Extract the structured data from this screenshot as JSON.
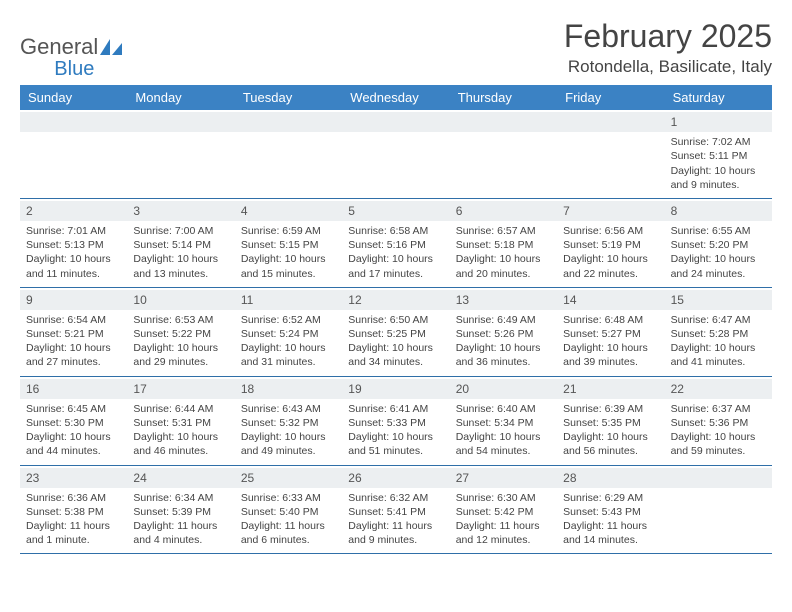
{
  "brand": {
    "part1": "General",
    "part2": "Blue"
  },
  "title": {
    "month": "February 2025",
    "location": "Rotondella, Basilicate, Italy"
  },
  "colors": {
    "headerBar": "#3b82c4",
    "rowDivider": "#2f6fa8",
    "daynumBg": "#eceff1",
    "brandBlue": "#2f7bbf"
  },
  "dayHeaders": [
    "Sunday",
    "Monday",
    "Tuesday",
    "Wednesday",
    "Thursday",
    "Friday",
    "Saturday"
  ],
  "weeks": [
    [
      null,
      null,
      null,
      null,
      null,
      null,
      {
        "n": "1",
        "sr": "Sunrise: 7:02 AM",
        "ss": "Sunset: 5:11 PM",
        "d1": "Daylight: 10 hours",
        "d2": "and 9 minutes."
      }
    ],
    [
      {
        "n": "2",
        "sr": "Sunrise: 7:01 AM",
        "ss": "Sunset: 5:13 PM",
        "d1": "Daylight: 10 hours",
        "d2": "and 11 minutes."
      },
      {
        "n": "3",
        "sr": "Sunrise: 7:00 AM",
        "ss": "Sunset: 5:14 PM",
        "d1": "Daylight: 10 hours",
        "d2": "and 13 minutes."
      },
      {
        "n": "4",
        "sr": "Sunrise: 6:59 AM",
        "ss": "Sunset: 5:15 PM",
        "d1": "Daylight: 10 hours",
        "d2": "and 15 minutes."
      },
      {
        "n": "5",
        "sr": "Sunrise: 6:58 AM",
        "ss": "Sunset: 5:16 PM",
        "d1": "Daylight: 10 hours",
        "d2": "and 17 minutes."
      },
      {
        "n": "6",
        "sr": "Sunrise: 6:57 AM",
        "ss": "Sunset: 5:18 PM",
        "d1": "Daylight: 10 hours",
        "d2": "and 20 minutes."
      },
      {
        "n": "7",
        "sr": "Sunrise: 6:56 AM",
        "ss": "Sunset: 5:19 PM",
        "d1": "Daylight: 10 hours",
        "d2": "and 22 minutes."
      },
      {
        "n": "8",
        "sr": "Sunrise: 6:55 AM",
        "ss": "Sunset: 5:20 PM",
        "d1": "Daylight: 10 hours",
        "d2": "and 24 minutes."
      }
    ],
    [
      {
        "n": "9",
        "sr": "Sunrise: 6:54 AM",
        "ss": "Sunset: 5:21 PM",
        "d1": "Daylight: 10 hours",
        "d2": "and 27 minutes."
      },
      {
        "n": "10",
        "sr": "Sunrise: 6:53 AM",
        "ss": "Sunset: 5:22 PM",
        "d1": "Daylight: 10 hours",
        "d2": "and 29 minutes."
      },
      {
        "n": "11",
        "sr": "Sunrise: 6:52 AM",
        "ss": "Sunset: 5:24 PM",
        "d1": "Daylight: 10 hours",
        "d2": "and 31 minutes."
      },
      {
        "n": "12",
        "sr": "Sunrise: 6:50 AM",
        "ss": "Sunset: 5:25 PM",
        "d1": "Daylight: 10 hours",
        "d2": "and 34 minutes."
      },
      {
        "n": "13",
        "sr": "Sunrise: 6:49 AM",
        "ss": "Sunset: 5:26 PM",
        "d1": "Daylight: 10 hours",
        "d2": "and 36 minutes."
      },
      {
        "n": "14",
        "sr": "Sunrise: 6:48 AM",
        "ss": "Sunset: 5:27 PM",
        "d1": "Daylight: 10 hours",
        "d2": "and 39 minutes."
      },
      {
        "n": "15",
        "sr": "Sunrise: 6:47 AM",
        "ss": "Sunset: 5:28 PM",
        "d1": "Daylight: 10 hours",
        "d2": "and 41 minutes."
      }
    ],
    [
      {
        "n": "16",
        "sr": "Sunrise: 6:45 AM",
        "ss": "Sunset: 5:30 PM",
        "d1": "Daylight: 10 hours",
        "d2": "and 44 minutes."
      },
      {
        "n": "17",
        "sr": "Sunrise: 6:44 AM",
        "ss": "Sunset: 5:31 PM",
        "d1": "Daylight: 10 hours",
        "d2": "and 46 minutes."
      },
      {
        "n": "18",
        "sr": "Sunrise: 6:43 AM",
        "ss": "Sunset: 5:32 PM",
        "d1": "Daylight: 10 hours",
        "d2": "and 49 minutes."
      },
      {
        "n": "19",
        "sr": "Sunrise: 6:41 AM",
        "ss": "Sunset: 5:33 PM",
        "d1": "Daylight: 10 hours",
        "d2": "and 51 minutes."
      },
      {
        "n": "20",
        "sr": "Sunrise: 6:40 AM",
        "ss": "Sunset: 5:34 PM",
        "d1": "Daylight: 10 hours",
        "d2": "and 54 minutes."
      },
      {
        "n": "21",
        "sr": "Sunrise: 6:39 AM",
        "ss": "Sunset: 5:35 PM",
        "d1": "Daylight: 10 hours",
        "d2": "and 56 minutes."
      },
      {
        "n": "22",
        "sr": "Sunrise: 6:37 AM",
        "ss": "Sunset: 5:36 PM",
        "d1": "Daylight: 10 hours",
        "d2": "and 59 minutes."
      }
    ],
    [
      {
        "n": "23",
        "sr": "Sunrise: 6:36 AM",
        "ss": "Sunset: 5:38 PM",
        "d1": "Daylight: 11 hours",
        "d2": "and 1 minute."
      },
      {
        "n": "24",
        "sr": "Sunrise: 6:34 AM",
        "ss": "Sunset: 5:39 PM",
        "d1": "Daylight: 11 hours",
        "d2": "and 4 minutes."
      },
      {
        "n": "25",
        "sr": "Sunrise: 6:33 AM",
        "ss": "Sunset: 5:40 PM",
        "d1": "Daylight: 11 hours",
        "d2": "and 6 minutes."
      },
      {
        "n": "26",
        "sr": "Sunrise: 6:32 AM",
        "ss": "Sunset: 5:41 PM",
        "d1": "Daylight: 11 hours",
        "d2": "and 9 minutes."
      },
      {
        "n": "27",
        "sr": "Sunrise: 6:30 AM",
        "ss": "Sunset: 5:42 PM",
        "d1": "Daylight: 11 hours",
        "d2": "and 12 minutes."
      },
      {
        "n": "28",
        "sr": "Sunrise: 6:29 AM",
        "ss": "Sunset: 5:43 PM",
        "d1": "Daylight: 11 hours",
        "d2": "and 14 minutes."
      },
      null
    ]
  ]
}
